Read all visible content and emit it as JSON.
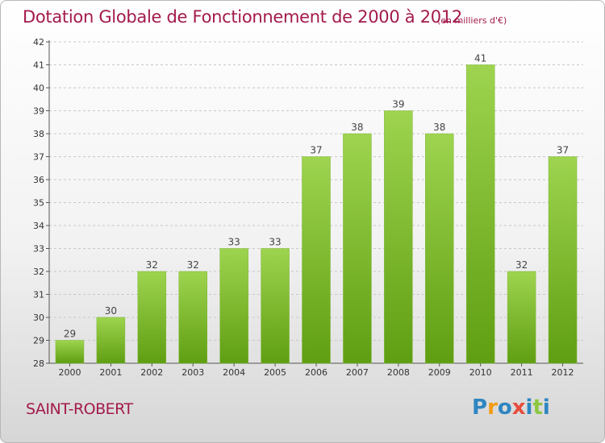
{
  "title": "Dotation Globale de Fonctionnement de 2000 à 2012",
  "subtitle": "(en milliers d'€)",
  "commune": "SAINT-ROBERT",
  "logo": {
    "text": "Proxiti",
    "letters": [
      {
        "ch": "P",
        "color": "#2e86c1"
      },
      {
        "ch": "r",
        "color": "#f39c12"
      },
      {
        "ch": "o",
        "color": "#2e86c1"
      },
      {
        "ch": "x",
        "color": "#e74c3c"
      },
      {
        "ch": "i",
        "color": "#2e86c1"
      },
      {
        "ch": "t",
        "color": "#8cc63f"
      },
      {
        "ch": "i",
        "color": "#2e86c1"
      }
    ]
  },
  "colors": {
    "title": "#a31a4c",
    "bar_top": "#9ed44f",
    "bar_bottom": "#5f9e12",
    "grid": "#c8c8c8",
    "axis": "#555555"
  },
  "chart_data": {
    "type": "bar",
    "title": "Dotation Globale de Fonctionnement de 2000 à 2012",
    "subtitle": "(en milliers d'€)",
    "xlabel": "",
    "ylabel": "",
    "categories": [
      "2000",
      "2001",
      "2002",
      "2003",
      "2004",
      "2005",
      "2006",
      "2007",
      "2008",
      "2009",
      "2010",
      "2011",
      "2012"
    ],
    "values": [
      29,
      30,
      32,
      32,
      33,
      33,
      37,
      38,
      39,
      38,
      41,
      32,
      37
    ],
    "ylim": [
      28,
      42
    ],
    "yticks": [
      28,
      29,
      30,
      31,
      32,
      33,
      34,
      35,
      36,
      37,
      38,
      39,
      40,
      41,
      42
    ],
    "grid": true,
    "legend": "none"
  }
}
